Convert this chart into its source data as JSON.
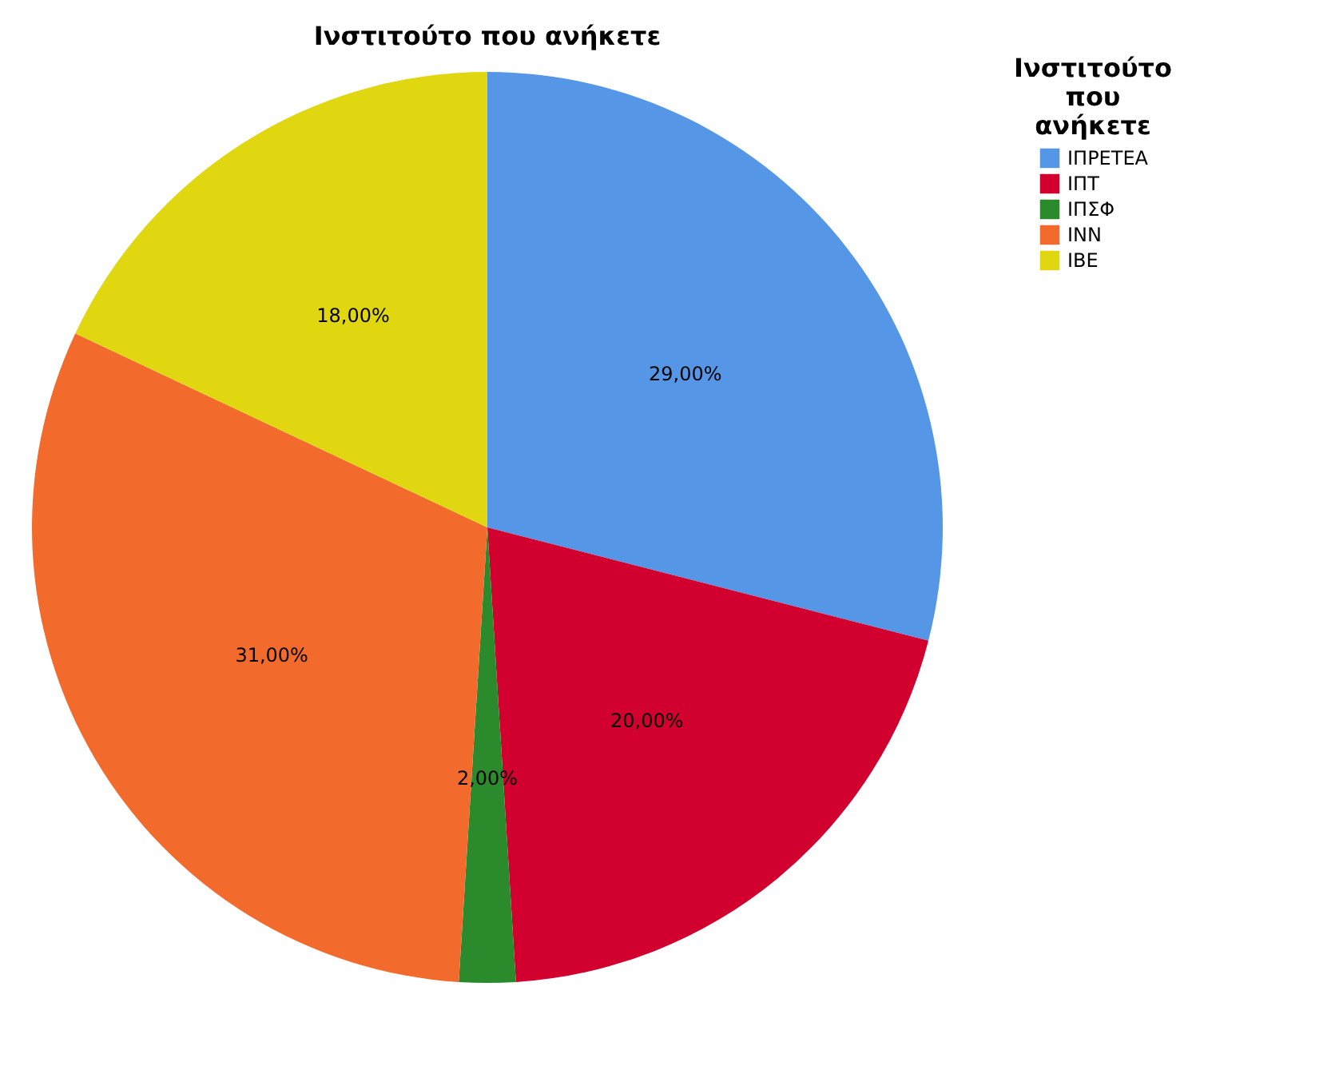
{
  "chart_data": {
    "type": "pie",
    "title": "Ινστιτούτο που ανήκετε",
    "legend_title": "Ινστιτούτο που ανήκετε",
    "categories": [
      "ΙΠΡΕΤΕΑ",
      "ΙΠΤ",
      "ΙΠΣΦ",
      "ΙΝΝ",
      "ΙΒΕ"
    ],
    "values": [
      29,
      20,
      2,
      31,
      18
    ],
    "colors": [
      "#5596e6",
      "#d1002f",
      "#2b8a2b",
      "#f26b2d",
      "#e0d710"
    ],
    "value_labels": [
      "29,00%",
      "20,00%",
      "2,00%",
      "31,00%",
      "18,00%"
    ],
    "legend": "top right"
  }
}
